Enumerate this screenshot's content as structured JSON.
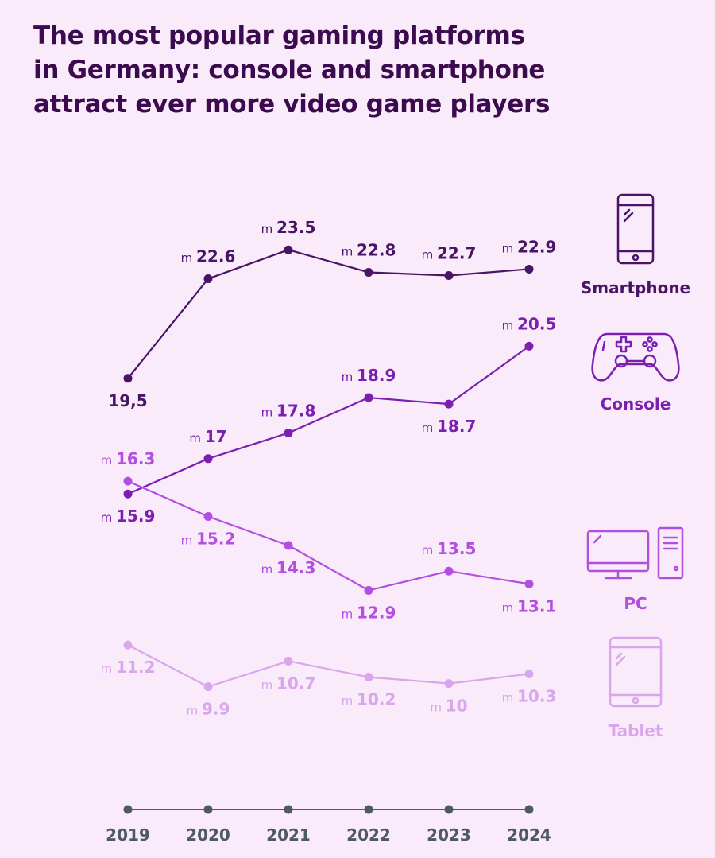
{
  "title_lines": [
    "The most popular gaming platforms",
    "in Germany: console and smartphone",
    "attract ever more video game players"
  ],
  "colors": {
    "background": "#faebfb",
    "title": "#3b0a4f",
    "smartphone": "#4a1466",
    "console": "#7a1fb0",
    "pc": "#b24ee0",
    "tablet": "#d9a6ec",
    "axis": "#4d5a61"
  },
  "legend": {
    "smartphone": {
      "label": "Smartphone",
      "icon": "smartphone-icon"
    },
    "console": {
      "label": "Console",
      "icon": "gamepad-icon"
    },
    "pc": {
      "label": "PC",
      "icon": "desktop-computer-icon"
    },
    "tablet": {
      "label": "Tablet",
      "icon": "tablet-icon"
    }
  },
  "chart_data": {
    "type": "line",
    "unit_prefix": "m",
    "title": "The most popular gaming platforms in Germany: console and smartphone attract ever more video game players",
    "xlabel": "",
    "ylabel": "",
    "categories": [
      "2019",
      "2020",
      "2021",
      "2022",
      "2023",
      "2024"
    ],
    "ylim": [
      8,
      25
    ],
    "series": [
      {
        "key": "smartphone",
        "name": "Smartphone",
        "values": [
          19.5,
          22.6,
          23.5,
          22.8,
          22.7,
          22.9
        ],
        "labels": [
          "19,5",
          "22.6",
          "23.5",
          "22.8",
          "22.7",
          "22.9"
        ]
      },
      {
        "key": "console",
        "name": "Console",
        "values": [
          15.9,
          17,
          17.8,
          18.9,
          18.7,
          20.5
        ],
        "labels": [
          "15.9",
          "17",
          "17.8",
          "18.9",
          "18.7",
          "20.5"
        ]
      },
      {
        "key": "pc",
        "name": "PC",
        "values": [
          16.3,
          15.2,
          14.3,
          12.9,
          13.5,
          13.1
        ],
        "labels": [
          "16.3",
          "15.2",
          "14.3",
          "12.9",
          "13.5",
          "13.1"
        ]
      },
      {
        "key": "tablet",
        "name": "Tablet",
        "values": [
          11.2,
          9.9,
          10.7,
          10.2,
          10,
          10.3
        ],
        "labels": [
          "11.2",
          "9.9",
          "10.7",
          "10.2",
          "10",
          "10.3"
        ]
      }
    ]
  }
}
